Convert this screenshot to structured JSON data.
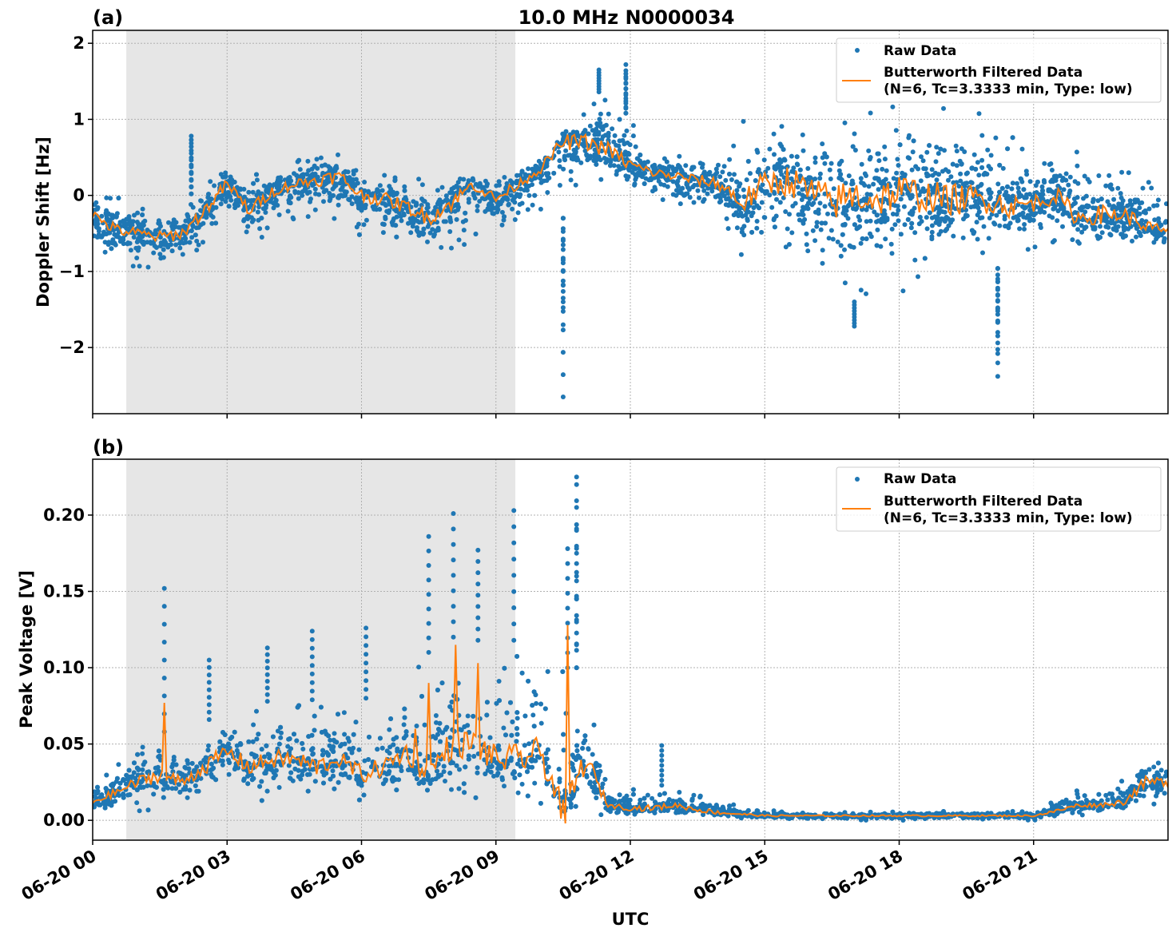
{
  "title": "10.0 MHz N0000034",
  "colors": {
    "raw": "#1f77b4",
    "filtered": "#ff7f0e",
    "shade": "#e6e6e6"
  },
  "chart_data": [
    {
      "type": "scatter",
      "panel_label": "(a)",
      "ylabel": "Doppler Shift [Hz]",
      "xlabel": "",
      "ylim": [
        -2.87,
        2.17
      ],
      "yticks": [
        2,
        1,
        0,
        -1,
        -2
      ],
      "ytick_labels": [
        "2",
        "1",
        "0",
        "−1",
        "−2"
      ],
      "grid": true,
      "legend_placement": "top-right",
      "legend": [
        "Raw Data",
        "Butterworth Filtered Data",
        "(N=6, Tc=3.3333 min, Type: low)"
      ],
      "shaded_span_utc": [
        "06-20 00:45",
        "06-20 09:26"
      ],
      "x_hours_utc": [
        0,
        0.5,
        1,
        1.5,
        2,
        2.5,
        3,
        3.5,
        4,
        4.5,
        5,
        5.5,
        6,
        6.5,
        7,
        7.5,
        8,
        8.5,
        9,
        9.5,
        10,
        10.5,
        11,
        11.5,
        12,
        12.5,
        13,
        13.5,
        14,
        14.5,
        15,
        15.5,
        16,
        16.5,
        17,
        17.5,
        18,
        18.5,
        19,
        19.5,
        20,
        20.5,
        21,
        21.5,
        22,
        22.5,
        23,
        23.5,
        24
      ],
      "series": [
        {
          "name": "Butterworth Filtered Data",
          "kind": "line",
          "values": [
            -0.25,
            -0.45,
            -0.5,
            -0.55,
            -0.5,
            -0.2,
            0.15,
            -0.2,
            0.05,
            0.15,
            0.2,
            0.25,
            0.0,
            -0.05,
            -0.15,
            -0.3,
            -0.1,
            0.15,
            -0.05,
            0.15,
            0.35,
            0.7,
            0.7,
            0.6,
            0.4,
            0.3,
            0.25,
            0.2,
            0.15,
            -0.1,
            0.15,
            0.2,
            0.05,
            -0.1,
            0.0,
            -0.05,
            0.05,
            0.0,
            -0.05,
            -0.05,
            -0.05,
            -0.15,
            -0.1,
            0.0,
            -0.3,
            -0.25,
            -0.25,
            -0.4,
            -0.5
          ]
        },
        {
          "name": "Raw Data",
          "kind": "scatter-envelope",
          "high": [
            0.05,
            0,
            -0.1,
            -0.1,
            -0.1,
            0.2,
            0.4,
            0.3,
            0.3,
            0.45,
            0.55,
            0.55,
            0.4,
            0.35,
            0.25,
            0.2,
            0.3,
            0.35,
            0.25,
            0.35,
            0.5,
            0.85,
            1.3,
            1.4,
            1.0,
            0.6,
            0.6,
            0.5,
            0.6,
            1.0,
            1.0,
            1.2,
            1.3,
            1.3,
            1.3,
            1.4,
            1.4,
            1.3,
            1.2,
            1.2,
            1.1,
            0.8,
            0.6,
            0.6,
            0.6,
            0.5,
            0.5,
            0.3,
            0.2
          ],
          "low": [
            -0.8,
            -0.9,
            -0.95,
            -1.0,
            -1.05,
            -0.8,
            -0.5,
            -0.7,
            -0.5,
            -0.4,
            -0.4,
            -0.5,
            -0.6,
            -0.7,
            -0.8,
            -0.9,
            -0.9,
            -0.6,
            -0.6,
            -0.4,
            -0.2,
            -0.3,
            0.1,
            0.2,
            0.0,
            -0.1,
            -0.2,
            -0.3,
            -0.5,
            -0.9,
            -0.9,
            -1.1,
            -1.3,
            -1.4,
            -1.4,
            -1.3,
            -1.3,
            -1.3,
            -1.1,
            -1.1,
            -1.0,
            -0.9,
            -0.7,
            -0.7,
            -0.8,
            -0.9,
            -0.8,
            -0.7,
            -0.7
          ],
          "outliers": [
            [
              10.5,
              -2.65
            ],
            [
              10.5,
              -1.7
            ],
            [
              10.5,
              -1.4
            ],
            [
              20.2,
              -2.38
            ],
            [
              20.2,
              -2.08
            ],
            [
              20.2,
              -1.65
            ],
            [
              11.9,
              1.72
            ],
            [
              11.9,
              1.6
            ],
            [
              2.2,
              0.78
            ],
            [
              2.2,
              0.73
            ],
            [
              11.3,
              1.65
            ],
            [
              17.0,
              -1.72
            ]
          ]
        }
      ]
    },
    {
      "type": "scatter",
      "panel_label": "(b)",
      "ylabel": "Peak Voltage [V]",
      "xlabel": "UTC",
      "ylim": [
        -0.013,
        0.2366
      ],
      "yticks": [
        0.2,
        0.15,
        0.1,
        0.05,
        0.0
      ],
      "ytick_labels": [
        "0.20",
        "0.15",
        "0.10",
        "0.05",
        "0.00"
      ],
      "xticks": [
        "06-20 00",
        "06-20 03",
        "06-20 06",
        "06-20 09",
        "06-20 12",
        "06-20 15",
        "06-20 18",
        "06-20 21"
      ],
      "grid": true,
      "legend_placement": "top-right",
      "legend": [
        "Raw Data",
        "Butterworth Filtered Data",
        "(N=6, Tc=3.3333 min, Type: low)"
      ],
      "shaded_span_utc": [
        "06-20 00:45",
        "06-20 09:26"
      ],
      "x_hours_utc": [
        0,
        0.5,
        1,
        1.5,
        2,
        2.5,
        3,
        3.5,
        4,
        4.5,
        5,
        5.5,
        6,
        6.5,
        7,
        7.5,
        8,
        8.5,
        9,
        9.5,
        10,
        10.5,
        11,
        11.5,
        12,
        12.5,
        13,
        13.5,
        14,
        14.5,
        15,
        15.5,
        16,
        16.5,
        17,
        17.5,
        18,
        18.5,
        19,
        19.5,
        20,
        20.5,
        21,
        21.5,
        22,
        22.5,
        23,
        23.5,
        24
      ],
      "series": [
        {
          "name": "Butterworth Filtered Data",
          "kind": "line",
          "values": [
            0.012,
            0.018,
            0.025,
            0.03,
            0.025,
            0.035,
            0.045,
            0.035,
            0.04,
            0.04,
            0.035,
            0.04,
            0.03,
            0.035,
            0.045,
            0.03,
            0.05,
            0.05,
            0.04,
            0.04,
            0.045,
            0.005,
            0.04,
            0.01,
            0.008,
            0.008,
            0.01,
            0.007,
            0.005,
            0.004,
            0.003,
            0.003,
            0.003,
            0.003,
            0.003,
            0.003,
            0.003,
            0.003,
            0.003,
            0.003,
            0.003,
            0.003,
            0.003,
            0.006,
            0.01,
            0.01,
            0.012,
            0.025,
            0.025
          ],
          "peaks": [
            [
              1.6,
              0.077
            ],
            [
              7.5,
              0.09
            ],
            [
              8.1,
              0.115
            ],
            [
              8.6,
              0.103
            ],
            [
              10.55,
              -0.002
            ],
            [
              10.6,
              0.128
            ],
            [
              7.2,
              0.06
            ]
          ]
        },
        {
          "name": "Raw Data",
          "kind": "scatter-envelope",
          "high": [
            0.025,
            0.035,
            0.05,
            0.06,
            0.05,
            0.065,
            0.07,
            0.07,
            0.08,
            0.075,
            0.08,
            0.07,
            0.08,
            0.08,
            0.09,
            0.11,
            0.12,
            0.12,
            0.11,
            0.12,
            0.12,
            0.1,
            0.1,
            0.02,
            0.02,
            0.025,
            0.02,
            0.02,
            0.015,
            0.01,
            0.008,
            0.006,
            0.006,
            0.006,
            0.006,
            0.006,
            0.006,
            0.006,
            0.006,
            0.006,
            0.006,
            0.006,
            0.006,
            0.015,
            0.02,
            0.02,
            0.03,
            0.05,
            0.045
          ],
          "low": [
            0.005,
            0.005,
            0.005,
            0.005,
            0.005,
            0.008,
            0.01,
            0.01,
            0.01,
            0.01,
            0.01,
            0.01,
            0.008,
            0.01,
            0.01,
            0.01,
            0.01,
            0.01,
            0.008,
            0.008,
            0.008,
            0.001,
            0.005,
            0.001,
            0.001,
            0.001,
            0.001,
            0.001,
            0.001,
            0.001,
            0.001,
            0.0,
            0.0,
            0.0,
            0.0,
            0.0,
            0.0,
            0.0,
            0.0,
            0.0,
            0.0,
            0.0,
            0.0,
            0.002,
            0.003,
            0.003,
            0.005,
            0.008,
            0.006
          ],
          "outliers": [
            [
              1.6,
              0.152
            ],
            [
              8.05,
              0.201
            ],
            [
              9.4,
              0.203
            ],
            [
              10.8,
              0.225
            ],
            [
              10.8,
              0.22
            ],
            [
              10.8,
              0.191
            ],
            [
              7.5,
              0.186
            ],
            [
              8.6,
              0.177
            ],
            [
              10.6,
              0.178
            ],
            [
              12.7,
              0.049
            ],
            [
              4.9,
              0.124
            ],
            [
              6.1,
              0.126
            ],
            [
              3.9,
              0.113
            ],
            [
              2.6,
              0.105
            ]
          ]
        }
      ]
    }
  ]
}
